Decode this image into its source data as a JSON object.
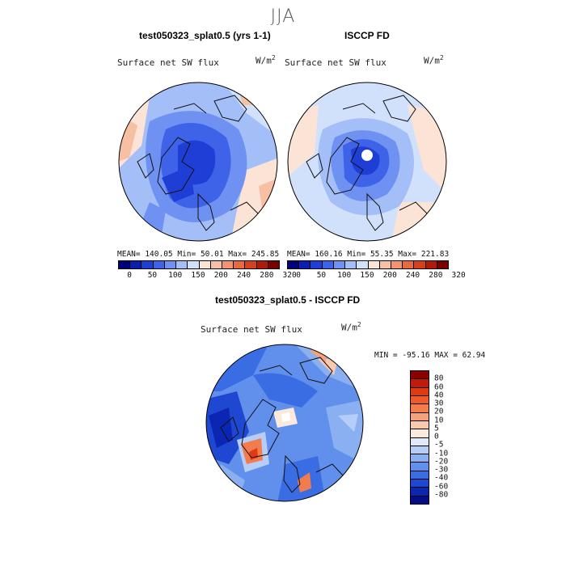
{
  "title": "JJA",
  "panels": [
    {
      "title": "test050323_splat0.5 (yrs 1-1)",
      "variable": "Surface net SW flux",
      "units_base": "W/m",
      "units_exp": "2",
      "stats": "MEAN= 140.05   Min=  50.01   Max= 245.85",
      "fill": "model",
      "polar_hole": false
    },
    {
      "title": "ISCCP FD",
      "variable": "Surface net SW flux",
      "units_base": "W/m",
      "units_exp": "2",
      "stats": "MEAN= 160.16   Min=  55.35   Max= 221.83",
      "fill": "obs",
      "polar_hole": true
    }
  ],
  "colorbar_top": {
    "labels": [
      "0",
      "50",
      "100",
      "150",
      "200",
      "240",
      "280",
      "320"
    ],
    "colors": [
      "#00007a",
      "#0a1fb0",
      "#1e3ed6",
      "#3f63e8",
      "#6f92f2",
      "#a4bff7",
      "#d2e1fb",
      "#fbe3d6",
      "#f7c0a4",
      "#f29472",
      "#e8693f",
      "#d6401e",
      "#b01a0a",
      "#7a0000"
    ]
  },
  "diff_panel": {
    "title": "test050323_splat0.5 - ISCCP FD",
    "variable": "Surface net SW flux",
    "units_base": "W/m",
    "units_exp": "2",
    "stats": "MIN = -95.16 MAX =  62.94",
    "fill": "diff"
  },
  "colorbar_diff": {
    "labels": [
      "80",
      "60",
      "40",
      "30",
      "20",
      "10",
      "5",
      "0",
      "-5",
      "-10",
      "-20",
      "-30",
      "-40",
      "-60",
      "-80"
    ],
    "colors": [
      "#8c0000",
      "#c31a0a",
      "#e03a14",
      "#f05a28",
      "#f27c4c",
      "#f5a27c",
      "#f9c9ae",
      "#fbe9dc",
      "#dfe9fb",
      "#b5cdf7",
      "#8bb0f2",
      "#6090ec",
      "#3a6ce4",
      "#1f48d2",
      "#0c26b4",
      "#040c86"
    ]
  }
}
